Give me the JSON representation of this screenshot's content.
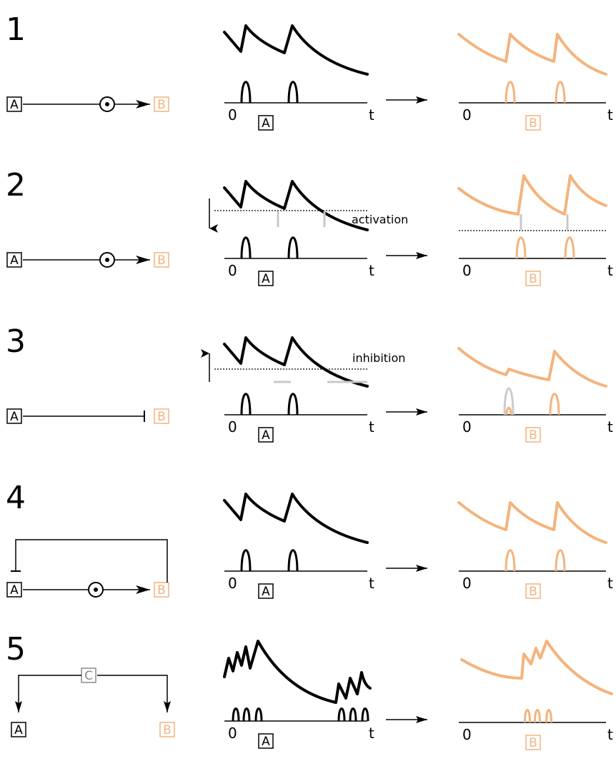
{
  "colors": {
    "black": "#000000",
    "orange": "#f4b37c",
    "grey": "#8a8a8a",
    "light_grey": "#cccccc"
  },
  "labels": {
    "A": "A",
    "B": "B",
    "C": "C",
    "zero": "0",
    "t": "t"
  },
  "panels": [
    {
      "number": "1",
      "mechanism": "activation-plus",
      "annotation": ""
    },
    {
      "number": "2",
      "mechanism": "activation-plus",
      "annotation": "activation"
    },
    {
      "number": "3",
      "mechanism": "inhibition",
      "annotation": "inhibition"
    },
    {
      "number": "4",
      "mechanism": "feedback-inhibition",
      "annotation": ""
    },
    {
      "number": "5",
      "mechanism": "common-input-C",
      "annotation": ""
    }
  ]
}
